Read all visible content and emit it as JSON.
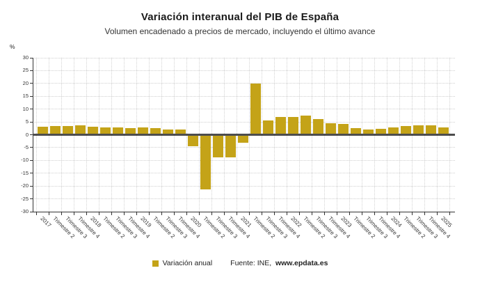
{
  "title": "Variación interanual del PIB de España",
  "subtitle": "Volumen encadenado a precios de mercado, incluyendo el último avance",
  "y_axis_unit": "%",
  "legend": {
    "series_label": "Variación anual"
  },
  "source": {
    "prefix": "Fuente: INE,",
    "site": "www.epdata.es"
  },
  "colors": {
    "bar": "#C4A318",
    "zero_line": "#4D4D4D",
    "axis": "#333333",
    "grid": "#CFCFCF",
    "title_text": "#1A1A1A",
    "subtitle_text": "#333333"
  },
  "chart_data": {
    "type": "bar",
    "title": "Variación interanual del PIB de España",
    "subtitle": "Volumen encadenado a precios de mercado, incluyendo el último avance",
    "series_name": "Variación anual",
    "xlabel": "",
    "ylabel": "%",
    "ylim": [
      -30,
      30
    ],
    "ytick_step": 5,
    "grid": true,
    "legend_position": "bottom",
    "source": "Fuente: INE, www.epdata.es",
    "categories": [
      "2017",
      "Trimestre 2",
      "Trimestre 3",
      "Trimestre 4",
      "2018",
      "Trimestre 2",
      "Trimestre 3",
      "Trimestre 4",
      "2019",
      "Trimestre 2",
      "Trimestre 3",
      "Trimestre 4",
      "2020",
      "Trimestre 2",
      "Trimestre 3",
      "Trimestre 4",
      "2021",
      "Trimestre 2",
      "Trimestre 3",
      "Trimestre 4",
      "2022",
      "Trimestre 2",
      "Trimestre 3",
      "Trimestre 4",
      "2023",
      "Trimestre 2",
      "Trimestre 3",
      "Trimestre 4",
      "2024",
      "Trimestre 2",
      "Trimestre 3",
      "Trimestre 4",
      "2025"
    ],
    "values": [
      2.9,
      3.3,
      3.3,
      3.4,
      3.1,
      2.7,
      2.7,
      2.4,
      2.8,
      2.5,
      1.9,
      1.9,
      -4.5,
      -21.5,
      -9.0,
      -9.0,
      -3.3,
      19.9,
      5.4,
      6.8,
      6.8,
      7.4,
      6.1,
      4.4,
      4.0,
      2.5,
      1.9,
      2.3,
      2.8,
      3.3,
      3.5,
      3.4,
      2.8
    ]
  }
}
